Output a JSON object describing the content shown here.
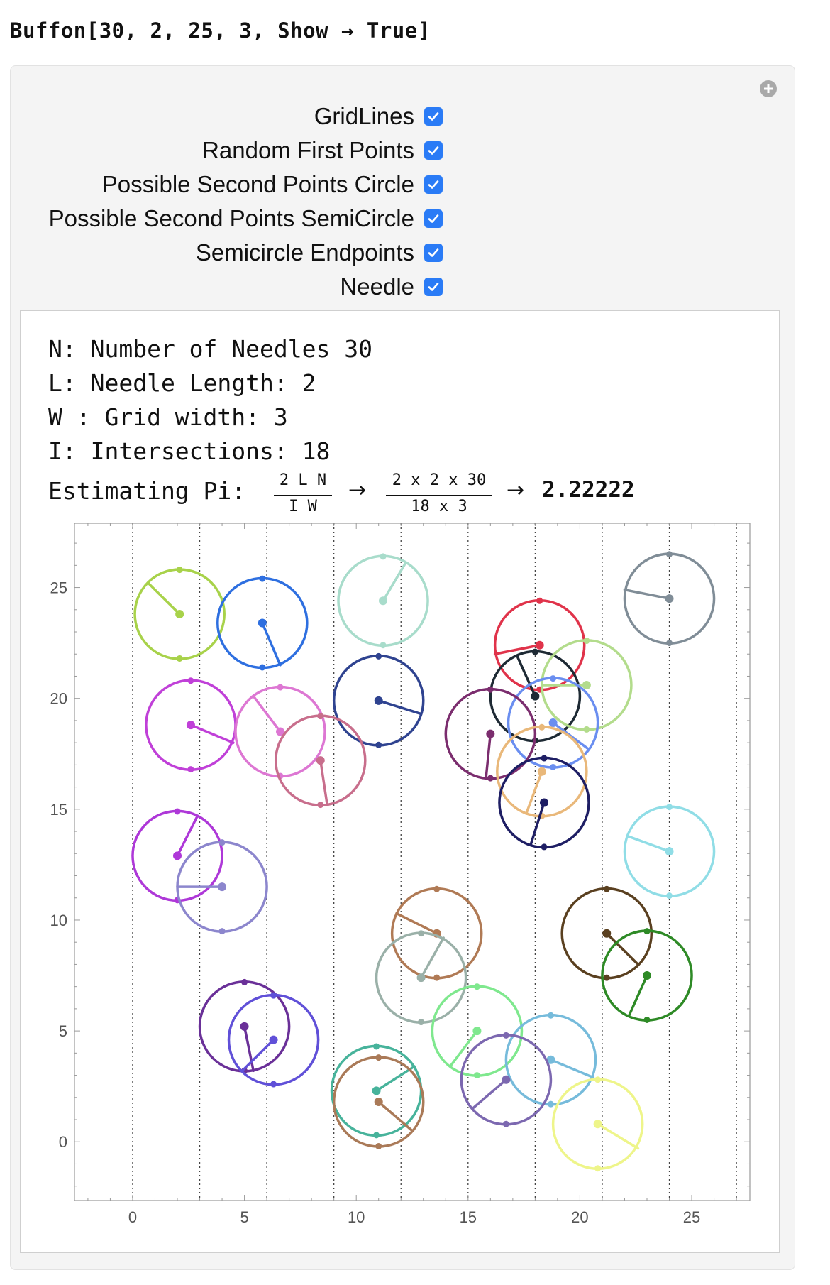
{
  "input": {
    "expression": "Buffon[30, 2, 25, 3, Show → True]"
  },
  "controls": [
    {
      "label": "GridLines",
      "checked": true
    },
    {
      "label": "Random First Points",
      "checked": true
    },
    {
      "label": "Possible Second Points Circle",
      "checked": true
    },
    {
      "label": "Possible Second Points SemiCircle",
      "checked": true
    },
    {
      "label": "Semicircle Endpoints",
      "checked": true
    },
    {
      "label": "Needle",
      "checked": true
    }
  ],
  "info": {
    "line1": "N: Number of Needles 30",
    "line2": "L: Needle Length: 2",
    "line3": "W : Grid width: 3",
    "line4": "I: Intersections: 18",
    "estimate_label": "Estimating Pi:",
    "frac1_num": "2 L N",
    "frac1_den": "I W",
    "arrow": "→",
    "frac2_num": "2 x 2 x 30",
    "frac2_den": "18 x 3",
    "result": "2.22222"
  },
  "chart_data": {
    "type": "scatter",
    "x_ticks": [
      "0",
      "5",
      "10",
      "15",
      "20",
      "25"
    ],
    "y_ticks": [
      "0",
      "5",
      "10",
      "15",
      "20",
      "25"
    ],
    "xlim": [
      -2.6,
      27.6
    ],
    "ylim": [
      -2.65,
      27.9
    ],
    "grid_lines_x": [
      0,
      3,
      6,
      9,
      12,
      15,
      18,
      21,
      24,
      27
    ],
    "needle_length": 2,
    "needles": [
      {
        "color": "#a8d24a",
        "cx": 2.1,
        "cy": 23.8,
        "ex": 0.7,
        "ey": 25.2
      },
      {
        "color": "#2e6fe0",
        "cx": 5.8,
        "cy": 23.4,
        "ex": 6.6,
        "ey": 21.5
      },
      {
        "color": "#a8dccb",
        "cx": 11.2,
        "cy": 24.4,
        "ex": 12.2,
        "ey": 26.1
      },
      {
        "color": "#808d97",
        "cx": 24.0,
        "cy": 24.5,
        "ex": 22.0,
        "ey": 24.9
      },
      {
        "color": "#e0334a",
        "cx": 18.2,
        "cy": 22.4,
        "ex": 16.2,
        "ey": 22.0
      },
      {
        "color": "#1e2a34",
        "cx": 18.0,
        "cy": 20.1,
        "ex": 17.2,
        "ey": 21.9
      },
      {
        "color": "#b3dc8c",
        "cx": 20.3,
        "cy": 20.6,
        "ex": 18.3,
        "ey": 20.6
      },
      {
        "color": "#6a8ef0",
        "cx": 18.8,
        "cy": 18.9,
        "ex": 20.4,
        "ey": 17.7
      },
      {
        "color": "#2f4390",
        "cx": 11.0,
        "cy": 19.9,
        "ex": 12.9,
        "ey": 19.3
      },
      {
        "color": "#c040d8",
        "cx": 2.6,
        "cy": 18.8,
        "ex": 4.5,
        "ey": 18.0
      },
      {
        "color": "#dd77d3",
        "cx": 6.6,
        "cy": 18.5,
        "ex": 5.4,
        "ey": 20.1
      },
      {
        "color": "#c86e8c",
        "cx": 8.4,
        "cy": 17.2,
        "ex": 8.7,
        "ey": 15.2
      },
      {
        "color": "#7b2d6e",
        "cx": 16.0,
        "cy": 18.4,
        "ex": 15.8,
        "ey": 16.4
      },
      {
        "color": "#e9b87a",
        "cx": 18.3,
        "cy": 16.7,
        "ex": 17.6,
        "ey": 14.8
      },
      {
        "color": "#1e1e64",
        "cx": 18.4,
        "cy": 15.3,
        "ex": 17.8,
        "ey": 13.4
      },
      {
        "color": "#ae38d8",
        "cx": 2.0,
        "cy": 12.9,
        "ex": 2.9,
        "ey": 14.7
      },
      {
        "color": "#8c86cd",
        "cx": 4.0,
        "cy": 11.5,
        "ex": 2.0,
        "ey": 11.5
      },
      {
        "color": "#90dde6",
        "cx": 24.0,
        "cy": 13.1,
        "ex": 22.1,
        "ey": 13.8
      },
      {
        "color": "#b07a55",
        "cx": 13.6,
        "cy": 9.4,
        "ex": 11.8,
        "ey": 10.3
      },
      {
        "color": "#9ab0a8",
        "cx": 12.9,
        "cy": 7.4,
        "ex": 13.9,
        "ey": 9.2
      },
      {
        "color": "#5a4020",
        "cx": 21.2,
        "cy": 9.4,
        "ex": 22.6,
        "ey": 8.0
      },
      {
        "color": "#2e8a26",
        "cx": 23.0,
        "cy": 7.5,
        "ex": 22.2,
        "ey": 5.7
      },
      {
        "color": "#6a3098",
        "cx": 5.0,
        "cy": 5.2,
        "ex": 5.4,
        "ey": 3.2
      },
      {
        "color": "#6050d8",
        "cx": 6.3,
        "cy": 4.6,
        "ex": 4.9,
        "ey": 3.2
      },
      {
        "color": "#7fe88e",
        "cx": 15.4,
        "cy": 5.0,
        "ex": 14.2,
        "ey": 3.4
      },
      {
        "color": "#76bbdb",
        "cx": 18.7,
        "cy": 3.7,
        "ex": 20.6,
        "ey": 2.9
      },
      {
        "color": "#7c68b0",
        "cx": 16.7,
        "cy": 2.8,
        "ex": 15.2,
        "ey": 1.5
      },
      {
        "color": "#47b39b",
        "cx": 10.9,
        "cy": 2.3,
        "ex": 12.6,
        "ey": 3.4
      },
      {
        "color": "#aa7a58",
        "cx": 11.0,
        "cy": 1.8,
        "ex": 12.5,
        "ey": 0.5
      },
      {
        "color": "#eef58a",
        "cx": 20.8,
        "cy": 0.8,
        "ex": 22.6,
        "ey": -0.3
      }
    ]
  }
}
